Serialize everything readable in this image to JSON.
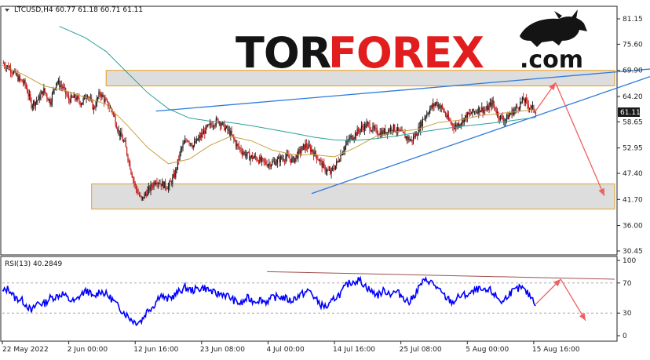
{
  "header": {
    "symbol_line": "LTCUSD,H4  60.77 61.18 60.71 61.11",
    "logo_tor": "TOR",
    "logo_forex": "FOREX",
    "logo_com": ".com"
  },
  "colors": {
    "candle_up": "#1a1a1a",
    "candle_down": "#c41a1a",
    "ma_fast": "#c8a040",
    "ma_slow": "#2aa198",
    "trend_line": "#2e7bdc",
    "zone_fill": "#d9d9d9",
    "zone_border": "#e8a020",
    "arrow": "#f06060",
    "rsi_line": "#0000ff",
    "rsi_trend": "#a05050",
    "price_tag": "#1a1a1a"
  },
  "chart_data": [
    {
      "type": "candlestick",
      "title": "LTCUSD,H4",
      "ohlc_last": {
        "open": 60.77,
        "high": 61.18,
        "low": 60.71,
        "close": 61.11
      },
      "current_price_label": "61.11",
      "ylim": [
        30.45,
        81.15
      ],
      "y_ticks": [
        "81.15",
        "75.60",
        "69.90",
        "64.20",
        "58.65",
        "52.95",
        "47.40",
        "41.70",
        "36.00",
        "30.45"
      ],
      "y_tick_values": [
        81.15,
        75.6,
        69.9,
        64.2,
        58.65,
        52.95,
        47.4,
        41.7,
        36.0,
        30.45
      ],
      "x_labels": [
        "22 May 2022",
        "2 Jun 00:00",
        "12 Jun 16:00",
        "23 Jun 08:00",
        "4 Jul 00:00",
        "14 Jul 16:00",
        "25 Jul 08:00",
        "5 Aug 00:00",
        "15 Aug 16:00"
      ],
      "x_label_index": [
        0,
        64,
        128,
        192,
        256,
        320,
        384,
        448,
        512
      ],
      "x_range": [
        0,
        590
      ],
      "close_path": [
        [
          0,
          71.5
        ],
        [
          8,
          70.2
        ],
        [
          16,
          68.0
        ],
        [
          22,
          66.8
        ],
        [
          28,
          62.5
        ],
        [
          34,
          63.4
        ],
        [
          40,
          65.5
        ],
        [
          46,
          63.0
        ],
        [
          52,
          67.5
        ],
        [
          58,
          66.2
        ],
        [
          64,
          63.5
        ],
        [
          70,
          64.0
        ],
        [
          76,
          62.8
        ],
        [
          82,
          64.8
        ],
        [
          88,
          61.5
        ],
        [
          94,
          65.0
        ],
        [
          100,
          62.8
        ],
        [
          106,
          61.0
        ],
        [
          112,
          56.5
        ],
        [
          118,
          53.8
        ],
        [
          124,
          48.0
        ],
        [
          128,
          44.5
        ],
        [
          134,
          41.5
        ],
        [
          138,
          43.0
        ],
        [
          142,
          44.0
        ],
        [
          148,
          46.0
        ],
        [
          154,
          45.0
        ],
        [
          160,
          44.5
        ],
        [
          166,
          47.0
        ],
        [
          172,
          52.5
        ],
        [
          178,
          55.0
        ],
        [
          184,
          53.5
        ],
        [
          190,
          55.2
        ],
        [
          196,
          57.0
        ],
        [
          202,
          58.2
        ],
        [
          208,
          59.0
        ],
        [
          214,
          57.5
        ],
        [
          220,
          56.0
        ],
        [
          226,
          53.5
        ],
        [
          232,
          52.0
        ],
        [
          238,
          51.0
        ],
        [
          244,
          50.8
        ],
        [
          250,
          50.0
        ],
        [
          256,
          49.5
        ],
        [
          262,
          49.8
        ],
        [
          268,
          50.6
        ],
        [
          274,
          51.0
        ],
        [
          280,
          50.2
        ],
        [
          286,
          52.0
        ],
        [
          292,
          53.5
        ],
        [
          298,
          52.5
        ],
        [
          304,
          50.8
        ],
        [
          310,
          48.5
        ],
        [
          316,
          47.5
        ],
        [
          322,
          49.5
        ],
        [
          328,
          52.5
        ],
        [
          334,
          54.8
        ],
        [
          340,
          56.0
        ],
        [
          346,
          57.3
        ],
        [
          352,
          58.0
        ],
        [
          358,
          56.8
        ],
        [
          364,
          56.2
        ],
        [
          370,
          56.6
        ],
        [
          376,
          57.5
        ],
        [
          382,
          56.5
        ],
        [
          388,
          55.5
        ],
        [
          394,
          54.5
        ],
        [
          400,
          56.5
        ],
        [
          406,
          59.5
        ],
        [
          412,
          61.5
        ],
        [
          418,
          62.8
        ],
        [
          424,
          61.5
        ],
        [
          430,
          59.0
        ],
        [
          436,
          57.5
        ],
        [
          442,
          58.8
        ],
        [
          448,
          60.0
        ],
        [
          454,
          60.8
        ],
        [
          460,
          61.5
        ],
        [
          466,
          61.2
        ],
        [
          472,
          62.8
        ],
        [
          478,
          60.0
        ],
        [
          484,
          59.0
        ],
        [
          490,
          60.5
        ],
        [
          496,
          61.8
        ],
        [
          502,
          63.5
        ],
        [
          508,
          62.0
        ],
        [
          514,
          61.11
        ]
      ],
      "ma_fast": [
        [
          0,
          71.0
        ],
        [
          20,
          69.0
        ],
        [
          40,
          66.5
        ],
        [
          60,
          65.5
        ],
        [
          80,
          64.0
        ],
        [
          100,
          62.5
        ],
        [
          120,
          58.0
        ],
        [
          140,
          53.0
        ],
        [
          160,
          49.5
        ],
        [
          180,
          50.5
        ],
        [
          200,
          53.5
        ],
        [
          220,
          55.5
        ],
        [
          240,
          54.5
        ],
        [
          260,
          52.5
        ],
        [
          280,
          51.5
        ],
        [
          300,
          51.5
        ],
        [
          320,
          51.0
        ],
        [
          340,
          53.0
        ],
        [
          360,
          55.5
        ],
        [
          380,
          56.5
        ],
        [
          400,
          57.0
        ],
        [
          420,
          58.5
        ],
        [
          440,
          59.0
        ],
        [
          460,
          60.0
        ],
        [
          480,
          60.5
        ],
        [
          500,
          61.0
        ],
        [
          514,
          61.3
        ]
      ],
      "ma_slow": [
        [
          55,
          79.5
        ],
        [
          80,
          77.0
        ],
        [
          100,
          74.0
        ],
        [
          120,
          69.5
        ],
        [
          140,
          65.0
        ],
        [
          160,
          61.5
        ],
        [
          180,
          59.5
        ],
        [
          200,
          58.8
        ],
        [
          220,
          58.5
        ],
        [
          240,
          57.8
        ],
        [
          260,
          57.0
        ],
        [
          280,
          56.2
        ],
        [
          300,
          55.3
        ],
        [
          320,
          54.7
        ],
        [
          340,
          54.6
        ],
        [
          360,
          55.0
        ],
        [
          380,
          55.6
        ],
        [
          400,
          56.3
        ],
        [
          420,
          57.0
        ],
        [
          440,
          57.6
        ],
        [
          460,
          58.1
        ],
        [
          480,
          58.6
        ],
        [
          500,
          59.2
        ],
        [
          514,
          59.6
        ]
      ],
      "zones": [
        {
          "y_from": 66.5,
          "y_to": 69.9,
          "x_from": 100,
          "x_to": 590
        },
        {
          "y_from": 39.6,
          "y_to": 45.1,
          "x_from": 86,
          "x_to": 590
        }
      ],
      "trend_lines": [
        {
          "x1": 148,
          "y1": 61.0,
          "x2": 625,
          "y2": 70.2
        },
        {
          "x1": 298,
          "y1": 43.0,
          "x2": 630,
          "y2": 69.0
        }
      ],
      "forecast_arrows": [
        [
          [
            514,
            61.1
          ],
          [
            533,
            67.2
          ]
        ],
        [
          [
            533,
            67.2
          ],
          [
            580,
            42.5
          ]
        ]
      ]
    },
    {
      "type": "line",
      "title": "RSI(13) 40.2849",
      "ylim": [
        0,
        100
      ],
      "y_ticks": [
        "100",
        "70",
        "30",
        "0"
      ],
      "y_tick_values": [
        100,
        70,
        30,
        0
      ],
      "dashed_levels": [
        70,
        30
      ],
      "rsi_path": [
        [
          0,
          58
        ],
        [
          6,
          63
        ],
        [
          12,
          50
        ],
        [
          18,
          48
        ],
        [
          24,
          40
        ],
        [
          28,
          32
        ],
        [
          34,
          44
        ],
        [
          40,
          42
        ],
        [
          46,
          50
        ],
        [
          52,
          52
        ],
        [
          58,
          56
        ],
        [
          64,
          48
        ],
        [
          70,
          45
        ],
        [
          76,
          55
        ],
        [
          82,
          60
        ],
        [
          88,
          50
        ],
        [
          94,
          60
        ],
        [
          100,
          55
        ],
        [
          106,
          48
        ],
        [
          112,
          38
        ],
        [
          118,
          30
        ],
        [
          124,
          22
        ],
        [
          128,
          18
        ],
        [
          134,
          20
        ],
        [
          140,
          34
        ],
        [
          146,
          40
        ],
        [
          152,
          55
        ],
        [
          158,
          48
        ],
        [
          164,
          52
        ],
        [
          170,
          58
        ],
        [
          176,
          64
        ],
        [
          182,
          60
        ],
        [
          188,
          62
        ],
        [
          194,
          64
        ],
        [
          200,
          60
        ],
        [
          206,
          55
        ],
        [
          212,
          56
        ],
        [
          218,
          52
        ],
        [
          224,
          46
        ],
        [
          230,
          42
        ],
        [
          236,
          50
        ],
        [
          242,
          46
        ],
        [
          248,
          48
        ],
        [
          254,
          45
        ],
        [
          260,
          50
        ],
        [
          266,
          52
        ],
        [
          272,
          50
        ],
        [
          278,
          46
        ],
        [
          284,
          52
        ],
        [
          290,
          56
        ],
        [
          296,
          60
        ],
        [
          302,
          48
        ],
        [
          308,
          40
        ],
        [
          314,
          38
        ],
        [
          320,
          50
        ],
        [
          326,
          56
        ],
        [
          332,
          68
        ],
        [
          338,
          72
        ],
        [
          344,
          74
        ],
        [
          350,
          66
        ],
        [
          356,
          58
        ],
        [
          362,
          54
        ],
        [
          368,
          60
        ],
        [
          374,
          56
        ],
        [
          380,
          58
        ],
        [
          386,
          52
        ],
        [
          392,
          44
        ],
        [
          398,
          56
        ],
        [
          404,
          70
        ],
        [
          410,
          74
        ],
        [
          416,
          68
        ],
        [
          422,
          58
        ],
        [
          428,
          50
        ],
        [
          434,
          44
        ],
        [
          440,
          52
        ],
        [
          446,
          54
        ],
        [
          452,
          56
        ],
        [
          458,
          62
        ],
        [
          464,
          58
        ],
        [
          470,
          60
        ],
        [
          476,
          52
        ],
        [
          482,
          44
        ],
        [
          488,
          56
        ],
        [
          494,
          60
        ],
        [
          500,
          64
        ],
        [
          506,
          56
        ],
        [
          512,
          48
        ],
        [
          514,
          40
        ]
      ],
      "rsi_trend_line": {
        "x1": 255,
        "y1": 85.0,
        "x2": 590,
        "y2": 75.0
      },
      "forecast_arrows": [
        [
          [
            514,
            42
          ],
          [
            538,
            75
          ]
        ],
        [
          [
            538,
            75
          ],
          [
            562,
            20
          ]
        ]
      ]
    }
  ]
}
